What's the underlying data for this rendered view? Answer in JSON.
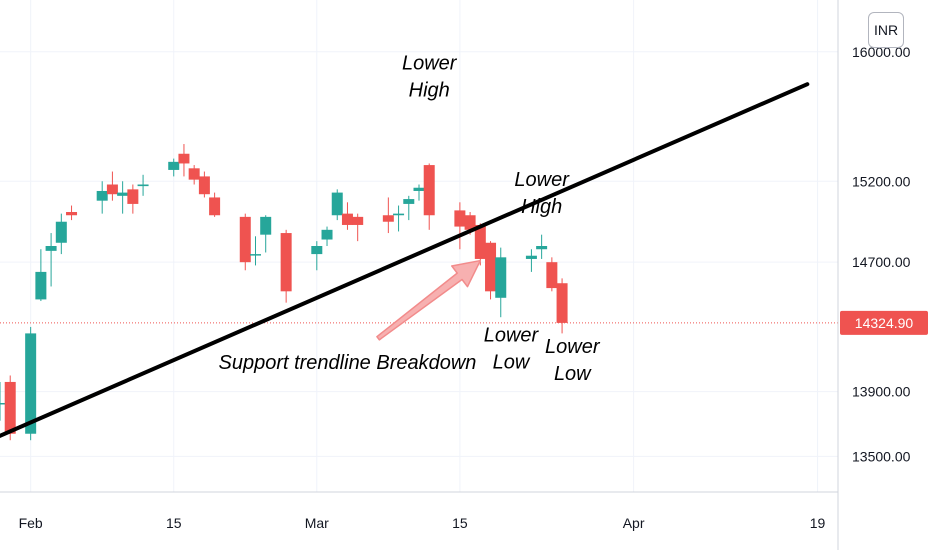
{
  "currency": "INR",
  "last_price_label": "14324.90",
  "colors": {
    "up": "#26a69a",
    "down": "#ef5350",
    "trendline": "#000000",
    "grid": "#f0f3fa",
    "axis": "#131722"
  },
  "chart_data": {
    "type": "candlestick",
    "title": "",
    "xlabel": "",
    "ylabel": "",
    "y_ticks": [
      13500,
      13900,
      14700,
      15200,
      16000
    ],
    "y_tick_labels": [
      "13500.00",
      "13900.00",
      "14700.00",
      "15200.00",
      "16000.00"
    ],
    "ylim": [
      13280,
      16320
    ],
    "x_tick_labels": [
      {
        "date": "2021-02-01",
        "label": "Feb"
      },
      {
        "date": "2021-02-15",
        "label": "15"
      },
      {
        "date": "2021-03-01",
        "label": "Mar"
      },
      {
        "date": "2021-03-15",
        "label": "15"
      },
      {
        "date": "2021-04-01",
        "label": "Apr"
      },
      {
        "date": "2021-04-19",
        "label": "19"
      }
    ],
    "xlim": [
      "2021-01-29",
      "2021-04-21"
    ],
    "last_price": 14324.9,
    "candles": [
      {
        "date": "2021-01-29",
        "open": 13830,
        "high": 13960,
        "low": 13720,
        "close": 13830
      },
      {
        "date": "2021-01-30",
        "open": 13960,
        "high": 14000,
        "low": 13600,
        "close": 13640
      },
      {
        "date": "2021-02-01",
        "open": 13640,
        "high": 14300,
        "low": 13600,
        "close": 14260
      },
      {
        "date": "2021-02-02",
        "open": 14470,
        "high": 14780,
        "low": 14460,
        "close": 14640
      },
      {
        "date": "2021-02-03",
        "open": 14770,
        "high": 14880,
        "low": 14550,
        "close": 14800
      },
      {
        "date": "2021-02-04",
        "open": 14820,
        "high": 15000,
        "low": 14750,
        "close": 14950
      },
      {
        "date": "2021-02-05",
        "open": 15010,
        "high": 15050,
        "low": 14960,
        "close": 14990
      },
      {
        "date": "2021-02-08",
        "open": 15080,
        "high": 15200,
        "low": 15000,
        "close": 15140
      },
      {
        "date": "2021-02-09",
        "open": 15180,
        "high": 15260,
        "low": 15080,
        "close": 15120
      },
      {
        "date": "2021-02-10",
        "open": 15110,
        "high": 15200,
        "low": 15000,
        "close": 15130
      },
      {
        "date": "2021-02-11",
        "open": 15150,
        "high": 15180,
        "low": 15000,
        "close": 15060
      },
      {
        "date": "2021-02-12",
        "open": 15170,
        "high": 15240,
        "low": 15110,
        "close": 15180
      },
      {
        "date": "2021-02-15",
        "open": 15270,
        "high": 15340,
        "low": 15230,
        "close": 15320
      },
      {
        "date": "2021-02-16",
        "open": 15370,
        "high": 15430,
        "low": 15230,
        "close": 15310
      },
      {
        "date": "2021-02-17",
        "open": 15280,
        "high": 15300,
        "low": 15180,
        "close": 15210
      },
      {
        "date": "2021-02-18",
        "open": 15230,
        "high": 15260,
        "low": 15100,
        "close": 15120
      },
      {
        "date": "2021-02-19",
        "open": 15100,
        "high": 15130,
        "low": 14980,
        "close": 14990
      },
      {
        "date": "2021-02-22",
        "open": 14980,
        "high": 15000,
        "low": 14650,
        "close": 14700
      },
      {
        "date": "2021-02-23",
        "open": 14750,
        "high": 14860,
        "low": 14680,
        "close": 14750
      },
      {
        "date": "2021-02-24",
        "open": 14870,
        "high": 14990,
        "low": 14760,
        "close": 14980
      },
      {
        "date": "2021-02-26",
        "open": 14880,
        "high": 14900,
        "low": 14450,
        "close": 14520
      },
      {
        "date": "2021-03-01",
        "open": 14750,
        "high": 14830,
        "low": 14650,
        "close": 14800
      },
      {
        "date": "2021-03-02",
        "open": 14840,
        "high": 14920,
        "low": 14800,
        "close": 14900
      },
      {
        "date": "2021-03-03",
        "open": 14990,
        "high": 15150,
        "low": 14960,
        "close": 15130
      },
      {
        "date": "2021-03-04",
        "open": 15000,
        "high": 15070,
        "low": 14900,
        "close": 14930
      },
      {
        "date": "2021-03-05",
        "open": 14980,
        "high": 15000,
        "low": 14830,
        "close": 14930
      },
      {
        "date": "2021-03-08",
        "open": 14990,
        "high": 15100,
        "low": 14880,
        "close": 14950
      },
      {
        "date": "2021-03-09",
        "open": 14990,
        "high": 15050,
        "low": 14890,
        "close": 15000
      },
      {
        "date": "2021-03-10",
        "open": 15060,
        "high": 15110,
        "low": 14960,
        "close": 15090
      },
      {
        "date": "2021-03-11",
        "open": 15140,
        "high": 15180,
        "low": 15080,
        "close": 15160
      },
      {
        "date": "2021-03-12",
        "open": 15300,
        "high": 15310,
        "low": 14900,
        "close": 14990
      },
      {
        "date": "2021-03-15",
        "open": 15020,
        "high": 15070,
        "low": 14780,
        "close": 14920
      },
      {
        "date": "2021-03-16",
        "open": 14990,
        "high": 15010,
        "low": 14870,
        "close": 14900
      },
      {
        "date": "2021-03-17",
        "open": 14930,
        "high": 14940,
        "low": 14680,
        "close": 14720
      },
      {
        "date": "2021-03-18",
        "open": 14820,
        "high": 14830,
        "low": 14470,
        "close": 14520
      },
      {
        "date": "2021-03-19",
        "open": 14480,
        "high": 14790,
        "low": 14360,
        "close": 14730
      },
      {
        "date": "2021-03-22",
        "open": 14720,
        "high": 14780,
        "low": 14640,
        "close": 14740
      },
      {
        "date": "2021-03-23",
        "open": 14780,
        "high": 14870,
        "low": 14720,
        "close": 14800
      },
      {
        "date": "2021-03-24",
        "open": 14700,
        "high": 14730,
        "low": 14520,
        "close": 14540
      },
      {
        "date": "2021-03-25",
        "open": 14570,
        "high": 14600,
        "low": 14260,
        "close": 14324.9
      }
    ],
    "trendline": {
      "from": {
        "date": "2021-01-28",
        "price": 13600
      },
      "to": {
        "date": "2021-04-18",
        "price": 15800
      }
    },
    "annotations": [
      {
        "text": [
          "Lower",
          "High"
        ],
        "date": "2021-03-12",
        "price": 15890
      },
      {
        "text": [
          "Lower",
          "High"
        ],
        "date": "2021-03-23",
        "price": 15170
      },
      {
        "text": [
          "Lower",
          "Low"
        ],
        "date": "2021-03-20",
        "price": 14210
      },
      {
        "text": [
          "Lower",
          "Low"
        ],
        "date": "2021-03-26",
        "price": 14140
      },
      {
        "text": [
          "Support trendline Breakdown"
        ],
        "date": "2021-03-04",
        "price": 14040
      }
    ],
    "arrow": {
      "from": {
        "date": "2021-03-07",
        "price": 14230
      },
      "to": {
        "date": "2021-03-17",
        "price": 14710
      }
    }
  }
}
